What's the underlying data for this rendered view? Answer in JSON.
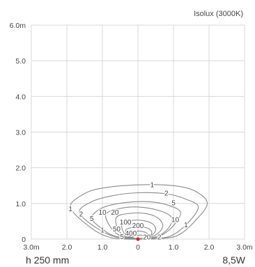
{
  "chart_data": {
    "type": "contour",
    "title": "Isolux (3000K)",
    "xlabel": "",
    "ylabel": "",
    "xlim": [
      -3.0,
      3.0
    ],
    "ylim": [
      0,
      6.0
    ],
    "grid": true,
    "x_ticks": [
      {
        "value": -3.0,
        "label": "3.0m"
      },
      {
        "value": -2.0,
        "label": "2.0"
      },
      {
        "value": -1.0,
        "label": "1.0"
      },
      {
        "value": 0,
        "label": "0"
      },
      {
        "value": 1.0,
        "label": "1.0"
      },
      {
        "value": 2.0,
        "label": "2.0"
      },
      {
        "value": 3.0,
        "label": "3.0m"
      }
    ],
    "y_ticks": [
      {
        "value": 0,
        "label": "0"
      },
      {
        "value": 1.0,
        "label": "1.0"
      },
      {
        "value": 2.0,
        "label": "2.0"
      },
      {
        "value": 3.0,
        "label": "3.0"
      },
      {
        "value": 4.0,
        "label": "4.0"
      },
      {
        "value": 5.0,
        "label": "5.0"
      },
      {
        "value": 6.0,
        "label": "6.0m"
      }
    ],
    "source_point": {
      "x": 0,
      "y": 0
    },
    "contours": [
      {
        "level": "1",
        "points": [
          [
            -1.9,
            0.88
          ],
          [
            -1.55,
            1.25
          ],
          [
            -1.0,
            1.43
          ],
          [
            0,
            1.52
          ],
          [
            1.0,
            1.5
          ],
          [
            1.6,
            1.35
          ],
          [
            1.95,
            1.0
          ],
          [
            1.6,
            0.5
          ],
          [
            1.15,
            0.12
          ],
          [
            0.7,
            0.02
          ],
          [
            0.3,
            0
          ],
          [
            -0.3,
            0
          ],
          [
            -0.8,
            0.05
          ],
          [
            -1.3,
            0.3
          ],
          [
            -1.9,
            0.88
          ]
        ]
      },
      {
        "level": "2",
        "points": [
          [
            -1.65,
            0.75
          ],
          [
            -1.3,
            1.05
          ],
          [
            -0.7,
            1.22
          ],
          [
            0,
            1.3
          ],
          [
            0.8,
            1.27
          ],
          [
            1.35,
            1.12
          ],
          [
            1.7,
            0.9
          ],
          [
            1.4,
            0.45
          ],
          [
            0.95,
            0.1
          ],
          [
            0.5,
            0.02
          ],
          [
            0,
            0
          ],
          [
            -0.6,
            0.05
          ],
          [
            -1.15,
            0.3
          ],
          [
            -1.65,
            0.75
          ]
        ]
      },
      {
        "level": "5",
        "points": [
          [
            -1.3,
            0.6
          ],
          [
            -1.0,
            0.88
          ],
          [
            -0.4,
            1.02
          ],
          [
            0.3,
            1.05
          ],
          [
            0.85,
            0.95
          ],
          [
            1.2,
            0.75
          ],
          [
            1.0,
            0.38
          ],
          [
            0.65,
            0.1
          ],
          [
            0.3,
            0.02
          ],
          [
            -0.2,
            0.02
          ],
          [
            -0.7,
            0.1
          ],
          [
            -1.05,
            0.32
          ],
          [
            -1.3,
            0.6
          ]
        ]
      },
      {
        "level": "10",
        "points": [
          [
            -0.9,
            0.7
          ],
          [
            -0.55,
            0.85
          ],
          [
            0,
            0.9
          ],
          [
            0.6,
            0.8
          ],
          [
            0.95,
            0.6
          ],
          [
            0.85,
            0.3
          ],
          [
            0.55,
            0.08
          ],
          [
            0.2,
            0.02
          ],
          [
            -0.2,
            0.02
          ],
          [
            -0.55,
            0.12
          ],
          [
            -0.8,
            0.38
          ],
          [
            -0.9,
            0.7
          ]
        ]
      },
      {
        "level": "20",
        "points": [
          [
            -0.6,
            0.62
          ],
          [
            -0.25,
            0.72
          ],
          [
            0.2,
            0.72
          ],
          [
            0.55,
            0.6
          ],
          [
            0.7,
            0.38
          ],
          [
            0.55,
            0.15
          ],
          [
            0.25,
            0.03
          ],
          [
            -0.1,
            0.02
          ],
          [
            -0.4,
            0.1
          ],
          [
            -0.58,
            0.32
          ],
          [
            -0.6,
            0.62
          ]
        ]
      },
      {
        "level": "50",
        "points": [
          [
            -0.45,
            0.42
          ],
          [
            -0.2,
            0.52
          ],
          [
            0.15,
            0.52
          ],
          [
            0.42,
            0.42
          ],
          [
            0.5,
            0.25
          ],
          [
            0.35,
            0.08
          ],
          [
            0.1,
            0.02
          ],
          [
            -0.15,
            0.03
          ],
          [
            -0.38,
            0.15
          ],
          [
            -0.45,
            0.42
          ]
        ]
      },
      {
        "level": "100",
        "points": [
          [
            -0.35,
            0.25
          ],
          [
            -0.1,
            0.34
          ],
          [
            0.15,
            0.34
          ],
          [
            0.35,
            0.26
          ],
          [
            0.38,
            0.14
          ],
          [
            0.22,
            0.04
          ],
          [
            0,
            0.02
          ],
          [
            -0.2,
            0.05
          ],
          [
            -0.35,
            0.25
          ]
        ]
      },
      {
        "level": "200",
        "points": [
          [
            -0.25,
            0.15
          ],
          [
            -0.05,
            0.22
          ],
          [
            0.15,
            0.21
          ],
          [
            0.28,
            0.14
          ],
          [
            0.25,
            0.06
          ],
          [
            0.1,
            0.02
          ],
          [
            -0.1,
            0.02
          ],
          [
            -0.22,
            0.08
          ],
          [
            -0.25,
            0.15
          ]
        ]
      },
      {
        "level": "400",
        "points": [
          [
            -0.15,
            0.07
          ],
          [
            0,
            0.11
          ],
          [
            0.15,
            0.1
          ],
          [
            0.18,
            0.05
          ],
          [
            0.08,
            0.01
          ],
          [
            -0.08,
            0.01
          ],
          [
            -0.15,
            0.07
          ]
        ]
      }
    ],
    "contour_labels": [
      {
        "text": "1",
        "x": 0.4,
        "y": 1.52
      },
      {
        "text": "2",
        "x": 0.8,
        "y": 1.29
      },
      {
        "text": "5",
        "x": 1.0,
        "y": 1.02
      },
      {
        "text": "10",
        "x": 1.05,
        "y": 0.55
      },
      {
        "text": "1",
        "x": 1.35,
        "y": 0.4
      },
      {
        "text": "1",
        "x": -1.9,
        "y": 0.85
      },
      {
        "text": "2",
        "x": -1.6,
        "y": 0.7
      },
      {
        "text": "5",
        "x": -1.3,
        "y": 0.58
      },
      {
        "text": "10",
        "x": -1.0,
        "y": 0.75
      },
      {
        "text": "20",
        "x": -0.65,
        "y": 0.75
      },
      {
        "text": "100",
        "x": -0.35,
        "y": 0.48
      },
      {
        "text": "200",
        "x": 0.0,
        "y": 0.38
      },
      {
        "text": "50",
        "x": -0.6,
        "y": 0.28
      },
      {
        "text": "1",
        "x": -1.0,
        "y": 0.25
      },
      {
        "text": "400",
        "x": -0.2,
        "y": 0.17
      },
      {
        "text": "5",
        "x": -0.45,
        "y": 0.07
      },
      {
        "text": "20",
        "x": 0.25,
        "y": 0.06
      },
      {
        "text": "2",
        "x": 0.6,
        "y": 0.06
      }
    ]
  },
  "footer": {
    "height_label": "h 250 mm",
    "power_label": "8,5W"
  },
  "colors": {
    "grid": "#d8d8d8",
    "axis": "#c8c8c8",
    "contour": "#8a8a8a",
    "text": "#444444",
    "source": "#e02020"
  }
}
